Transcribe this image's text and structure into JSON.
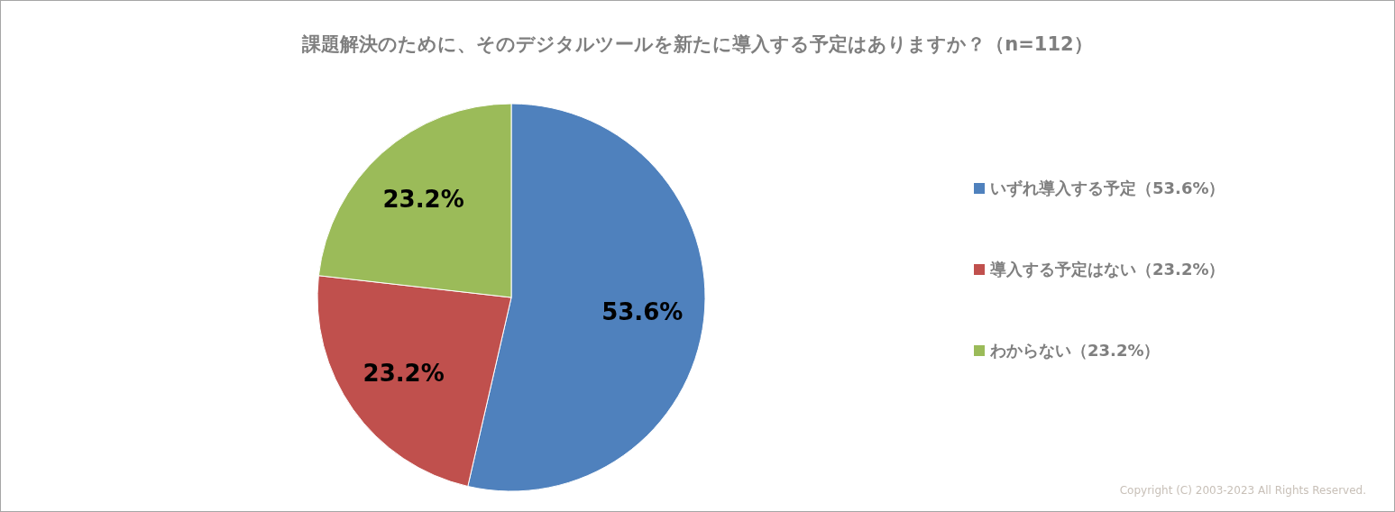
{
  "chart_data": {
    "type": "pie",
    "title": "課題解決のために、そのデジタルツールを新たに導入する予定はありますか？（n=112）",
    "categories": [
      "いずれ導入する予定（53.6%）",
      "導入する予定はない（23.2%）",
      "わからない（23.2%）"
    ],
    "values": [
      53.6,
      23.2,
      23.2
    ],
    "colors": [
      "#4f81bd",
      "#c0504d",
      "#9bbb59"
    ],
    "value_labels": [
      "53.6%",
      "23.2%",
      "23.2%"
    ],
    "legend": "right",
    "annotations": [
      "Copyright (C) 2003-2023 All Rights Reserved."
    ]
  }
}
